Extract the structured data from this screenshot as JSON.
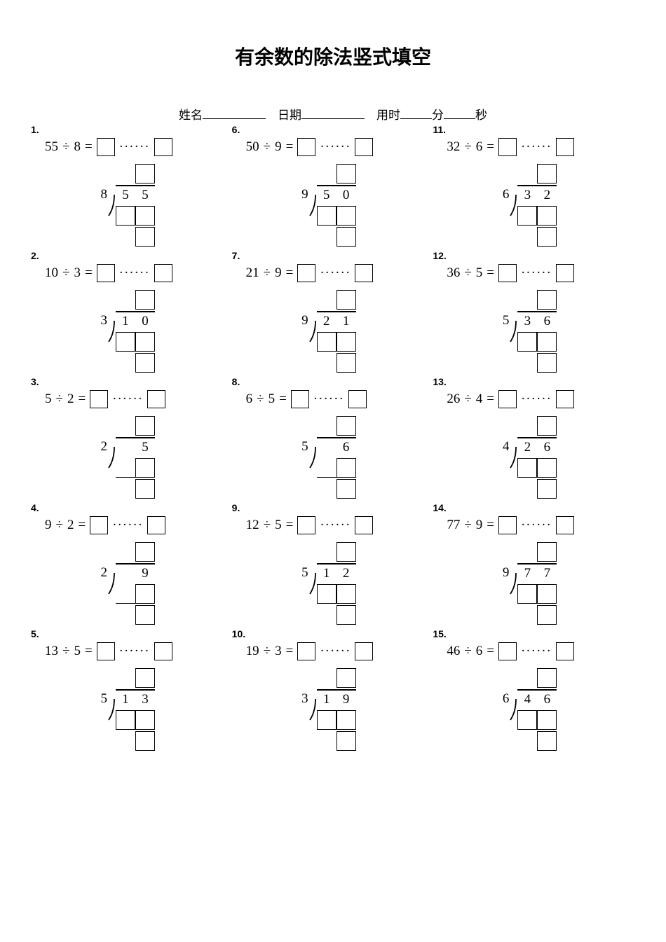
{
  "title": "有余数的除法竖式填空",
  "header": {
    "name_label": "姓名",
    "date_label": "日期",
    "time_label": "用时",
    "minute_label": "分",
    "second_label": "秒"
  },
  "symbols": {
    "divide": "÷",
    "equals": "=",
    "dots": "······"
  },
  "problems": [
    {
      "n": "1.",
      "dividend": "55",
      "divisor": "8",
      "d1": "5",
      "d2": "5",
      "single": false
    },
    {
      "n": "2.",
      "dividend": "10",
      "divisor": "3",
      "d1": "1",
      "d2": "0",
      "single": false
    },
    {
      "n": "3.",
      "dividend": "5",
      "divisor": "2",
      "d1": "",
      "d2": "5",
      "single": true
    },
    {
      "n": "4.",
      "dividend": "9",
      "divisor": "2",
      "d1": "",
      "d2": "9",
      "single": true
    },
    {
      "n": "5.",
      "dividend": "13",
      "divisor": "5",
      "d1": "1",
      "d2": "3",
      "single": false
    },
    {
      "n": "6.",
      "dividend": "50",
      "divisor": "9",
      "d1": "5",
      "d2": "0",
      "single": false
    },
    {
      "n": "7.",
      "dividend": "21",
      "divisor": "9",
      "d1": "2",
      "d2": "1",
      "single": false
    },
    {
      "n": "8.",
      "dividend": "6",
      "divisor": "5",
      "d1": "",
      "d2": "6",
      "single": true
    },
    {
      "n": "9.",
      "dividend": "12",
      "divisor": "5",
      "d1": "1",
      "d2": "2",
      "single": false
    },
    {
      "n": "10.",
      "dividend": "19",
      "divisor": "3",
      "d1": "1",
      "d2": "9",
      "single": false
    },
    {
      "n": "11.",
      "dividend": "32",
      "divisor": "6",
      "d1": "3",
      "d2": "2",
      "single": false
    },
    {
      "n": "12.",
      "dividend": "36",
      "divisor": "5",
      "d1": "3",
      "d2": "6",
      "single": false
    },
    {
      "n": "13.",
      "dividend": "26",
      "divisor": "4",
      "d1": "2",
      "d2": "6",
      "single": false
    },
    {
      "n": "14.",
      "dividend": "77",
      "divisor": "9",
      "d1": "7",
      "d2": "7",
      "single": false
    },
    {
      "n": "15.",
      "dividend": "46",
      "divisor": "6",
      "d1": "4",
      "d2": "6",
      "single": false
    }
  ]
}
